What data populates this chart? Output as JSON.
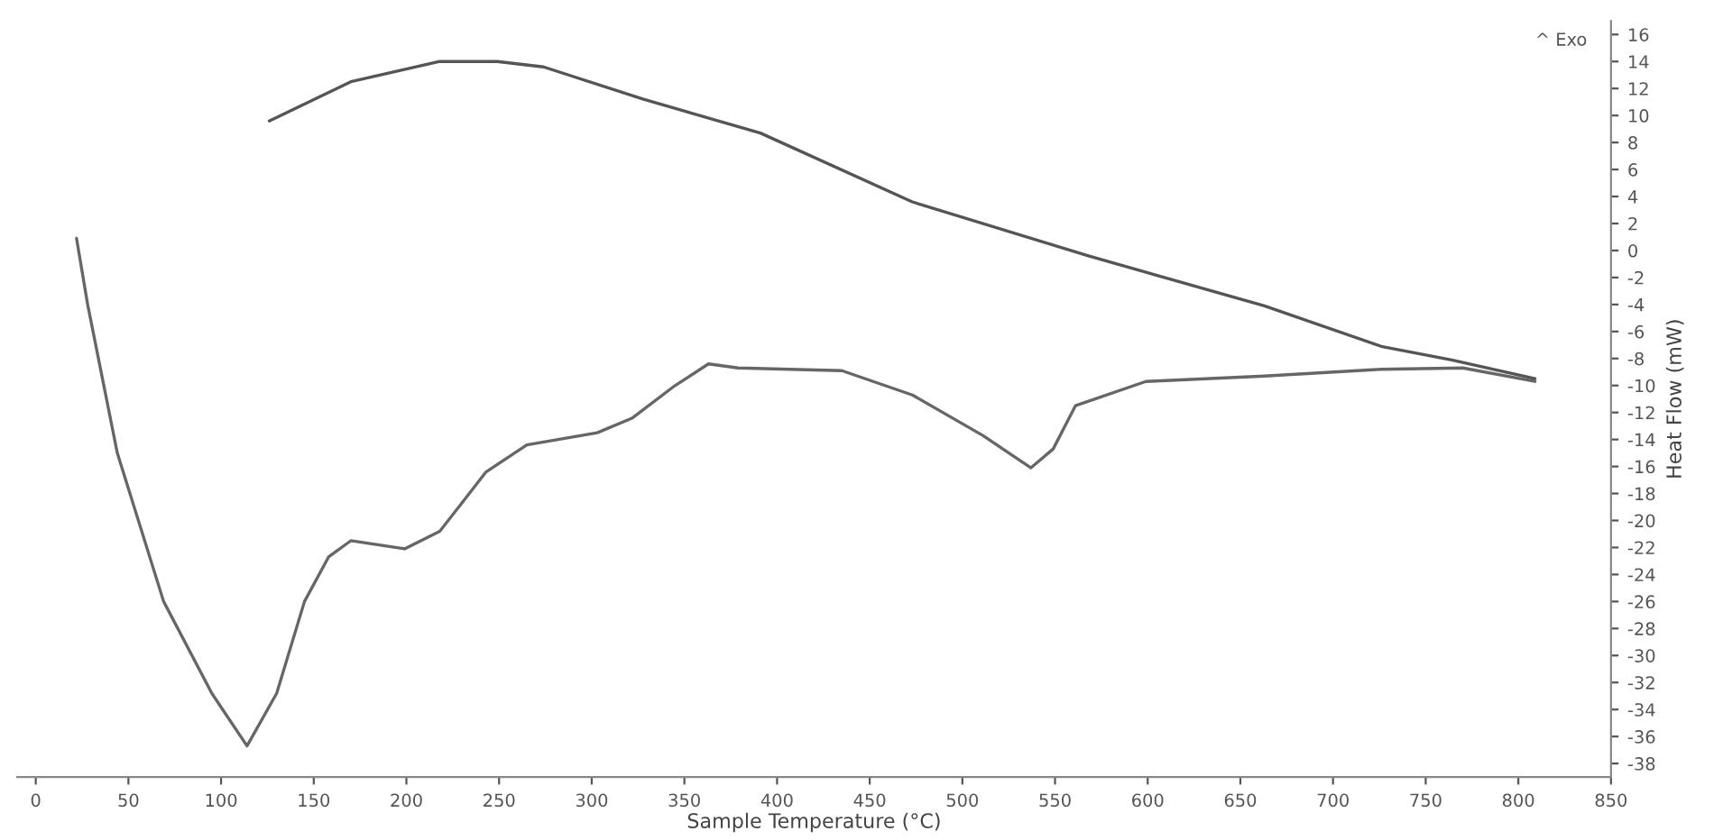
{
  "chart_data": {
    "type": "line",
    "xlabel": "Sample Temperature (°C)",
    "ylabel": "Heat Flow (mW)",
    "annotations": [
      "^ Exo"
    ],
    "xlim": [
      -10,
      850
    ],
    "xticks": [
      0,
      50,
      100,
      150,
      200,
      250,
      300,
      350,
      400,
      450,
      500,
      550,
      600,
      650,
      700,
      750,
      800,
      850
    ],
    "ylim": [
      -39,
      17
    ],
    "yticks": [
      -38,
      -36,
      -34,
      -32,
      -30,
      -28,
      -26,
      -24,
      -22,
      -20,
      -18,
      -16,
      -14,
      -12,
      -10,
      -8,
      -6,
      -4,
      -2,
      0,
      2,
      4,
      6,
      8,
      10,
      12,
      14,
      16
    ],
    "grid": false,
    "legend": false,
    "marker": "none",
    "line_style": "solid",
    "series": [
      {
        "color": "#666666",
        "x": [
          22,
          28,
          44,
          69,
          95,
          114,
          130,
          145,
          158,
          170,
          199,
          218,
          243,
          265,
          303,
          322,
          344,
          363,
          379,
          435,
          473,
          511,
          537,
          549,
          561,
          599,
          663,
          726,
          770,
          809
        ],
        "values": [
          0.9,
          -4,
          -15,
          -26,
          -32.8,
          -36.7,
          -32.8,
          -26,
          -22.7,
          -21.5,
          -22.1,
          -20.8,
          -16.4,
          -14.4,
          -13.5,
          -12.4,
          -10.1,
          -8.4,
          -8.7,
          -8.9,
          -10.7,
          -13.7,
          -16.1,
          -14.7,
          -11.5,
          -9.7,
          -9.3,
          -8.8,
          -8.7,
          -9.7
        ]
      },
      {
        "color": "#555555",
        "x": [
          126,
          170,
          218,
          249,
          274,
          328,
          391,
          473,
          568,
          663,
          726,
          764,
          809
        ],
        "values": [
          9.6,
          12.5,
          14,
          14,
          13.6,
          11.2,
          8.7,
          3.6,
          -0.4,
          -4.1,
          -7.1,
          -8.1,
          -9.5
        ]
      }
    ]
  }
}
